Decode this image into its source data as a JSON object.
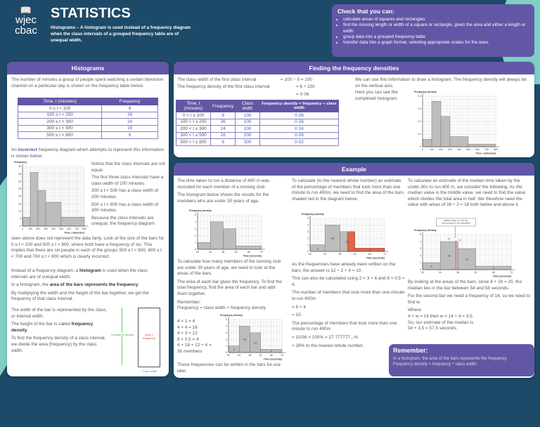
{
  "header": {
    "logo_line1": "wjec",
    "logo_line2": "cbac",
    "title": "STATISTICS",
    "subtitle": "Histograms – A histogram is used instead of a frequency diagram when the class intervals of a grouped frequency table are of unequal width."
  },
  "check": {
    "title": "Check that you can:",
    "items": [
      "calculate areas of squares and rectangles",
      "find the missing length or width of a square or rectangle, given the area and either a length or width",
      "group data into a grouped frequency table",
      "transfer data into a graph format, selecting appropriate scales for the axes."
    ]
  },
  "histograms": {
    "title": "Histograms",
    "intro": "The number of minutes a group of people spent watching a certain television channel on a particular day is shown on the frequency table below.",
    "table": {
      "headers": [
        "Time, t (minutes)",
        "Frequency"
      ],
      "rows": [
        [
          "0 ≤ t < 100",
          "6"
        ],
        [
          "100 ≤ t < 200",
          "36"
        ],
        [
          "200 ≤ t < 300",
          "24"
        ],
        [
          "300 ≤ t < 500",
          "16"
        ],
        [
          "500 ≤ t < 800",
          "6"
        ]
      ]
    },
    "incorrect_pre": "An ",
    "incorrect_word": "incorrect",
    "incorrect_post": " frequency diagram which attempts to represent this information is shown below:",
    "notes": [
      "Notice that the class intervals are not equal.",
      "The first three class intervals have a class width of 100 minutes.",
      "300 ≤ t < 500 has a class width of 200 minutes.",
      "500 ≤ t < 800 has a class width of 300 minutes.",
      "Because the class intervals are unequal, the frequency diagram"
    ],
    "unfair": "seen above does not represent the data fairly. Look at the size of the bars for 0 ≤ t < 100 and 500 ≤ t < 800, where both have a frequency of six. This implies that there are six people in each of the groups 500 ≤ t < 600, 600 ≤ t < 700 and 700 ≤ t < 800 which is clearly incorrect.",
    "p1_pre": "Instead of a frequency diagram, a ",
    "p1_bold": "histogram",
    "p1_post": " is used when the class intervals are of unequal width.",
    "p2_pre": "In a histogram, the ",
    "p2_bold": "area of the bars represents the frequency",
    "p2_post": ".",
    "p3": "By multiplying the width and the height of the bar together, we get the frequency of that class interval.",
    "p4": "The width of the bar is represented by the class, or interval width.",
    "p5_pre": "The height of the bar is called ",
    "p5_bold": "frequency density",
    "p5_post": ".",
    "p6": "To find the frequency density of a class interval, we divide the area (frequency) by the class width.",
    "diagram": {
      "height_label": "Frequency density",
      "area_label": "Area = frequency",
      "width_label": "← Class width →"
    }
  },
  "densities": {
    "title": "Finding the frequency densities",
    "line1_label": "The class width of the first class interval",
    "line1_value": "= 100 − 0 = 100",
    "line2_label": "The frequency density of the first class interval",
    "line2_value": "= 6 ÷ 100",
    "line3_value": "= 0·06",
    "table": {
      "headers": [
        "Time, t (minutes)",
        "Frequency",
        "Class width",
        "Frequency density = frequency ÷ class width"
      ],
      "rows": [
        [
          "0 < t ≤ 100",
          "6",
          "100",
          "0·06"
        ],
        [
          "100 < t ≤ 200",
          "36",
          "100",
          "0·36"
        ],
        [
          "200 < t ≤ 300",
          "24",
          "100",
          "0·24"
        ],
        [
          "300 < t ≤ 500",
          "16",
          "200",
          "0·08"
        ],
        [
          "500 < t ≤ 800",
          "6",
          "300",
          "0·02"
        ]
      ]
    },
    "text1": "We can use this information to draw a histogram. The frequency density will always be on the vertical axis.",
    "text2": "Here you can see the completed histogram."
  },
  "example": {
    "title": "Example",
    "col1": {
      "p1": "The time taken to run a distance of 400 m was recorded for each member of a running club.",
      "p2": "The histogram below shows the results for the members who are under 30 years of age.",
      "p3": "To calculate how many members of the running club are under 30 years of age, we need to look at the areas of the bars.",
      "p4": "The area of each bar gives the frequency. To find the total frequency, find the area of each bar and add them together.",
      "p5": "Remember:",
      "p6": "Frequency = class width × frequency density",
      "calcs": [
        "4 × 1 = 4",
        "4 × 4 = 16",
        "4 × 3 = 12",
        "8 × 0.5 = 4",
        "4 + 16 + 12 + 4 =",
        "36 members"
      ],
      "p7": "These frequencies can be written in the bars for use later."
    },
    "col2": {
      "p1": "To calculate (to the nearest whole number) an estimate of the percentage of members that took more than one minute to run 400m, we need to find the area of the bars shaded red in the diagram below.",
      "p2": "As the frequencies have already been written on the bars, the answer is 12 ÷ 2 + 4 = 10.",
      "p3": "This can also be calculated using 2 × 3 = 6 and 8 × 0.5 = 4.",
      "p4": "The number of members that took more than one minute to run 400m",
      "p5": "= 6 + 4",
      "p6": "= 10.",
      "p7": "The percentage of members that took more than one minute to run 400m",
      "p8": "= 10/36 × 100% = 27·777777...%",
      "p9": "= 28% to the nearest whole number.",
      "shaded_regions": [
        [
          60,
          62,
          3
        ],
        [
          62,
          70,
          0.5
        ]
      ],
      "shade_color": "#d9694a"
    },
    "col3": {
      "p1": "To calculate an estimate of the median time taken by the under-30s to run 400 m, we consider the following. As the median value is the middle value, we need to find the value which divides the total area in half. We therefore need the value with areas of 36 ÷ 2 = 18 both below and above it.",
      "callout": "Median value is in the the count position to be calculated",
      "label_a": "14",
      "label_b": "w",
      "median": 57.5,
      "median_color": "#e04040",
      "p2": "By looking at the areas of the bars, since 4 + 16 = 20, the median lies in the bar between 54 and 58 seconds.",
      "p3": "For the second bar we need a frequency of 14, so we need to find w.",
      "p4": "Where:",
      "p5": "4 × w = 14  then w = 14 ÷ 4 = 3.5.",
      "p6": "So, our estimate of the median is",
      "p7": "54 + 3.5 = 57.5  seconds."
    },
    "remember": {
      "title": "Remember:",
      "line1": "In a histogram, the area of the bars represents the frequency.",
      "line2": "Frequency density = frequency ÷ class width."
    }
  },
  "colors": {
    "background": "#1d4a68",
    "accent": "#6257a6",
    "teal": "#7fcfc4",
    "bar": "#bdbdbd"
  },
  "chart_data": [
    {
      "type": "bar",
      "title": "",
      "ylabel": "Frequency",
      "xlabel": "Time, t (minutes)",
      "bins": [
        [
          0,
          100
        ],
        [
          100,
          200
        ],
        [
          200,
          300
        ],
        [
          300,
          500
        ],
        [
          500,
          800
        ]
      ],
      "values": [
        6,
        36,
        24,
        16,
        6
      ],
      "xlim": [
        0,
        800
      ],
      "ylim": [
        0,
        40
      ],
      "xticks": [
        0,
        100,
        200,
        300,
        400,
        500,
        600,
        700,
        800
      ],
      "yticks": [
        0,
        5,
        10,
        15,
        20,
        25,
        30,
        35,
        40
      ],
      "grid": true
    },
    {
      "type": "bar",
      "title": "",
      "ylabel": "Frequency density",
      "xlabel": "Time, t (minutes)",
      "bins": [
        [
          0,
          100
        ],
        [
          100,
          200
        ],
        [
          200,
          300
        ],
        [
          300,
          500
        ],
        [
          500,
          800
        ]
      ],
      "values": [
        0.06,
        0.36,
        0.24,
        0.08,
        0.02
      ],
      "xlim": [
        0,
        800
      ],
      "ylim": [
        0,
        0.4
      ],
      "xticks": [
        0,
        100,
        200,
        300,
        400,
        500,
        600,
        700,
        800
      ],
      "yticks": [
        0,
        0.1,
        0.2,
        0.3,
        0.4
      ],
      "grid": true
    },
    {
      "type": "bar",
      "title": "",
      "ylabel": "Frequency density",
      "xlabel": "Time (seconds)",
      "bins": [
        [
          50,
          54
        ],
        [
          54,
          58
        ],
        [
          58,
          62
        ],
        [
          62,
          70
        ]
      ],
      "values": [
        1,
        4,
        3,
        0.5
      ],
      "bar_labels": [
        "4",
        "16",
        "12",
        "4"
      ],
      "xlim": [
        50,
        70
      ],
      "ylim": [
        0,
        5
      ],
      "xticks": [
        50,
        54,
        58,
        62,
        66,
        70
      ],
      "yticks": [
        0,
        1,
        2,
        3,
        4,
        5
      ],
      "grid": true
    }
  ]
}
